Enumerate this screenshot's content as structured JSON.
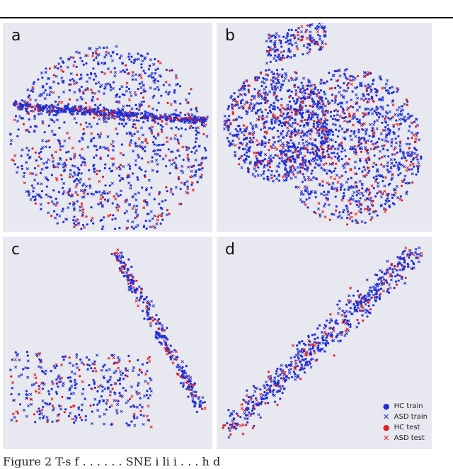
{
  "header_text": "",
  "caption": "Figure 2 T-s f  . . . . . . SNE  i  li  i  . . .   h d",
  "colors": {
    "hc": "#1f2fd6",
    "asd": "#e02020",
    "panel_bg": "#e8e8f0"
  },
  "chart_data": [
    {
      "type": "scatter",
      "panel": "a",
      "series": [
        {
          "marker": "dot",
          "color": "#1f2fd6"
        },
        {
          "marker": "x",
          "color": "#1f2fd6"
        },
        {
          "marker": "dot",
          "color": "#e02020"
        },
        {
          "marker": "x",
          "color": "#e02020"
        }
      ]
    },
    {
      "type": "scatter",
      "panel": "b",
      "series": [
        {
          "marker": "dot",
          "color": "#1f2fd6"
        },
        {
          "marker": "x",
          "color": "#1f2fd6"
        },
        {
          "marker": "dot",
          "color": "#e02020"
        },
        {
          "marker": "x",
          "color": "#e02020"
        }
      ]
    },
    {
      "type": "scatter",
      "panel": "c",
      "series": [
        {
          "marker": "dot",
          "color": "#1f2fd6"
        },
        {
          "marker": "x",
          "color": "#1f2fd6"
        },
        {
          "marker": "dot",
          "color": "#e02020"
        },
        {
          "marker": "x",
          "color": "#e02020"
        }
      ]
    },
    {
      "type": "scatter",
      "panel": "d",
      "legend": [
        "HC train",
        "ASD train",
        "HC test",
        "ASD test"
      ],
      "legend_position": "bottom-right",
      "series": [
        {
          "name": "HC train",
          "marker": "dot",
          "color": "#1f2fd6"
        },
        {
          "name": "ASD train",
          "marker": "x",
          "color": "#1f2fd6"
        },
        {
          "name": "HC test",
          "marker": "dot",
          "color": "#e02020"
        },
        {
          "name": "ASD test",
          "marker": "x",
          "color": "#e02020"
        }
      ]
    }
  ],
  "panels": {
    "a": {
      "letter": "a"
    },
    "b": {
      "letter": "b"
    },
    "c": {
      "letter": "c"
    },
    "d": {
      "letter": "d",
      "legend": [
        {
          "label": "HC train",
          "marker": "dot",
          "color": "#1f2fd6"
        },
        {
          "label": "ASD train",
          "marker": "x",
          "color": "#1f2fd6"
        },
        {
          "label": "HC test",
          "marker": "dot",
          "color": "#e02020"
        },
        {
          "label": "ASD test",
          "marker": "x",
          "color": "#e02020"
        }
      ]
    }
  }
}
